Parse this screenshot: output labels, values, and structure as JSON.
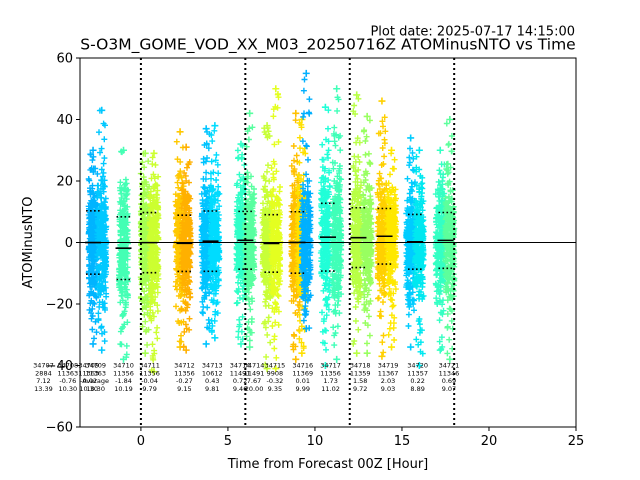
{
  "chart_data": {
    "type": "scatter",
    "title": "S-O3M_GOME_VOD_XX_M03_20250716Z ATOMinusNTO vs Time",
    "subtitle": "Plot date: 2025-07-17 14:15:00",
    "xlabel": "Time from Forecast 00Z [Hour]",
    "ylabel": "ATOMinusNTO",
    "xlim": [
      -3.5,
      25
    ],
    "ylim": [
      -60,
      60
    ],
    "x_ticks": [
      "0",
      "5",
      "10",
      "15",
      "20",
      "25"
    ],
    "y_ticks": [
      "−60",
      "−40",
      "−20",
      "0",
      "20",
      "40",
      "60"
    ],
    "grid": false,
    "zero_line": 0,
    "vertical_dotted_lines": [
      0,
      6,
      12,
      18
    ],
    "marker": "+",
    "groups": [
      {
        "x": -2.75,
        "min": -33,
        "max": 30,
        "mean": -0.02,
        "std": 10.3,
        "color": "#00b4ff"
      },
      {
        "x": -2.25,
        "min": -35,
        "max": 43,
        "mean": -0.3,
        "std": 10.3,
        "color": "#00c8ff"
      },
      {
        "x": -1.0,
        "min": -38,
        "max": 30,
        "mean": -1.84,
        "std": 10.19,
        "color": "#44ffb4"
      },
      {
        "x": 0.25,
        "min": -36,
        "max": 29,
        "mean": -0.04,
        "std": 9.79,
        "color": "#a6ff52"
      },
      {
        "x": 0.75,
        "min": -42,
        "max": 29,
        "mean": -0.04,
        "std": 9.79,
        "color": "#ccff30"
      },
      {
        "x": 2.25,
        "min": -34,
        "max": 36,
        "mean": -0.27,
        "std": 9.15,
        "color": "#ffc800"
      },
      {
        "x": 2.6,
        "min": -35,
        "max": 31,
        "mean": -0.27,
        "std": 9.15,
        "color": "#ffb000"
      },
      {
        "x": 3.75,
        "min": -33,
        "max": 37,
        "mean": 0.43,
        "std": 9.81,
        "color": "#00c4ff"
      },
      {
        "x": 4.25,
        "min": -31,
        "max": 38,
        "mean": 0.43,
        "std": 9.81,
        "color": "#00dcff"
      },
      {
        "x": 5.75,
        "min": -33,
        "max": 32,
        "mean": 0.72,
        "std": 9.4,
        "color": "#30ffc8"
      },
      {
        "x": 6.25,
        "min": -34,
        "max": 42,
        "mean": 0.72,
        "std": 9.4,
        "color": "#58ffa0"
      },
      {
        "x": 7.25,
        "min": -41,
        "max": 38,
        "mean": -0.32,
        "std": 9.35,
        "color": "#c8ff38"
      },
      {
        "x": 7.75,
        "min": -41,
        "max": 50,
        "mean": -0.32,
        "std": 9.35,
        "color": "#e4ff20"
      },
      {
        "x": 8.9,
        "min": -38,
        "max": 42,
        "mean": 0.01,
        "std": 9.99,
        "color": "#ffc000"
      },
      {
        "x": 9.25,
        "min": -36,
        "max": 40,
        "mean": 0.01,
        "std": 9.99,
        "color": "#ffe000"
      },
      {
        "x": 9.5,
        "min": -28,
        "max": 55,
        "mean": 0.01,
        "std": 9.99,
        "color": "#00b0ff"
      },
      {
        "x": 10.6,
        "min": -40,
        "max": 44,
        "mean": 1.73,
        "std": 11.02,
        "color": "#20ffd8"
      },
      {
        "x": 11.25,
        "min": -38,
        "max": 50,
        "mean": 1.73,
        "std": 11.02,
        "color": "#40ffb8"
      },
      {
        "x": 12.4,
        "min": -36,
        "max": 48,
        "mean": 1.58,
        "std": 9.72,
        "color": "#b8ff44"
      },
      {
        "x": 13.0,
        "min": -36,
        "max": 41,
        "mean": 1.58,
        "std": 9.72,
        "color": "#98ff60"
      },
      {
        "x": 13.85,
        "min": -37,
        "max": 46,
        "mean": 2.03,
        "std": 9.03,
        "color": "#ffd000"
      },
      {
        "x": 14.4,
        "min": -34,
        "max": 30,
        "mean": 2.03,
        "std": 9.03,
        "color": "#ffe800"
      },
      {
        "x": 15.5,
        "min": -34,
        "max": 34,
        "mean": 0.22,
        "std": 8.89,
        "color": "#00ccff"
      },
      {
        "x": 16.0,
        "min": -40,
        "max": 30,
        "mean": 0.22,
        "std": 8.89,
        "color": "#00e8f0"
      },
      {
        "x": 17.2,
        "min": -35,
        "max": 30,
        "mean": 0.69,
        "std": 9.07,
        "color": "#34ffc4"
      },
      {
        "x": 17.75,
        "min": -38,
        "max": 40,
        "mean": 0.69,
        "std": 9.07,
        "color": "#5cff9c"
      }
    ],
    "bin_means": [
      {
        "x": -2.75,
        "mean": -0.02,
        "upper": 10.3,
        "lower": -10.3
      },
      {
        "x": -1.0,
        "mean": -1.84,
        "upper": 8.35,
        "lower": -12.03
      },
      {
        "x": 0.5,
        "mean": -0.04,
        "upper": 9.75,
        "lower": -9.83
      },
      {
        "x": 2.5,
        "mean": -0.27,
        "upper": 8.88,
        "lower": -9.42
      },
      {
        "x": 4.0,
        "mean": 0.43,
        "upper": 10.24,
        "lower": -9.38
      },
      {
        "x": 6.0,
        "mean": 0.72,
        "upper": 10.12,
        "lower": -8.68
      },
      {
        "x": 7.5,
        "mean": -0.32,
        "upper": 9.03,
        "lower": -9.67
      },
      {
        "x": 9.0,
        "mean": 0.01,
        "upper": 10.0,
        "lower": -9.98
      },
      {
        "x": 10.75,
        "mean": 1.73,
        "upper": 12.75,
        "lower": -9.29
      },
      {
        "x": 12.5,
        "mean": 1.58,
        "upper": 11.3,
        "lower": -8.14
      },
      {
        "x": 14.0,
        "mean": 2.03,
        "upper": 11.06,
        "lower": -7.0
      },
      {
        "x": 15.75,
        "mean": 0.22,
        "upper": 9.11,
        "lower": -8.67
      },
      {
        "x": 17.5,
        "mean": 0.69,
        "upper": 9.76,
        "lower": -8.38
      }
    ],
    "annotations": [
      {
        "x": -5.6,
        "lines": [
          "34707",
          "2884",
          "7.12",
          "13.39"
        ]
      },
      {
        "x": -4.2,
        "lines": [
          "34708",
          "11363",
          "-0.76",
          "10.30"
        ]
      },
      {
        "x": -3.0,
        "lines": [
          "34709",
          "11363",
          "-0.02",
          "10.30"
        ]
      },
      {
        "x": -2.6,
        "lines": [
          "34709",
          "11363",
          "Average",
          "10.30"
        ]
      },
      {
        "x": -1.0,
        "lines": [
          "34710",
          "11356",
          "-1.84",
          "10.19"
        ]
      },
      {
        "x": 0.5,
        "lines": [
          "34711",
          "11356",
          "-0.04",
          "9.79"
        ]
      },
      {
        "x": 2.5,
        "lines": [
          "34712",
          "11356",
          "-0.27",
          "9.15"
        ]
      },
      {
        "x": 4.1,
        "lines": [
          "34713",
          "10612",
          "0.43",
          "9.81"
        ]
      },
      {
        "x": 5.7,
        "lines": [
          "34714",
          "11491",
          "0.72",
          "9.40"
        ]
      },
      {
        "x": 6.5,
        "lines": [
          "34714",
          "11491",
          "7.67",
          "20.00"
        ]
      },
      {
        "x": 7.7,
        "lines": [
          "34715",
          "9908",
          "-0.32",
          "9.35"
        ]
      },
      {
        "x": 9.3,
        "lines": [
          "34716",
          "11369",
          "0.01",
          "9.99"
        ]
      },
      {
        "x": 10.9,
        "lines": [
          "34717",
          "11356",
          "1.73",
          "11.02"
        ]
      },
      {
        "x": 12.6,
        "lines": [
          "34718",
          "11359",
          "1.58",
          "9.72"
        ]
      },
      {
        "x": 14.2,
        "lines": [
          "34719",
          "11367",
          "2.03",
          "9.03"
        ]
      },
      {
        "x": 15.9,
        "lines": [
          "34720",
          "11357",
          "0.22",
          "8.89"
        ]
      },
      {
        "x": 17.7,
        "lines": [
          "34721",
          "11346",
          "0.69",
          "9.07"
        ]
      }
    ],
    "annotation_y": -40
  }
}
